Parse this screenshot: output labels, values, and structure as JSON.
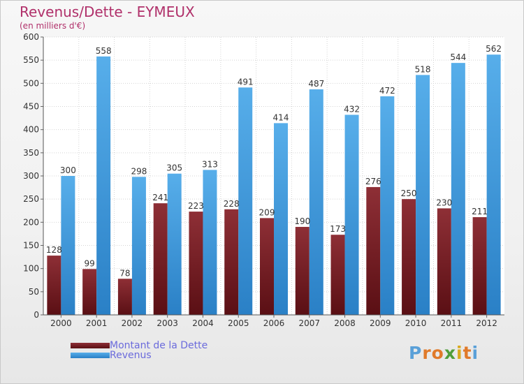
{
  "chart_data": {
    "type": "bar",
    "title": "Revenus/Dette - EYMEUX",
    "subtitle": "(en milliers d'€)",
    "categories": [
      "2000",
      "2001",
      "2002",
      "2003",
      "2004",
      "2005",
      "2006",
      "2007",
      "2008",
      "2009",
      "2010",
      "2011",
      "2012"
    ],
    "series": [
      {
        "name": "Montant de la Dette",
        "color": "#7a1f24",
        "values": [
          128,
          99,
          78,
          241,
          223,
          228,
          209,
          190,
          173,
          276,
          250,
          230,
          211
        ]
      },
      {
        "name": "Revenus",
        "color": "#3f97df",
        "values": [
          300,
          558,
          298,
          305,
          313,
          491,
          414,
          487,
          432,
          472,
          518,
          544,
          562
        ]
      }
    ],
    "ylim": [
      0,
      600
    ],
    "yticks": [
      0,
      50,
      100,
      150,
      200,
      250,
      300,
      350,
      400,
      450,
      500,
      550,
      600
    ],
    "grid": true,
    "legend_position": "bottom-left"
  },
  "logo": {
    "letters": [
      {
        "char": "P",
        "color": "#5aa0d8"
      },
      {
        "char": "r",
        "color": "#e07a2a"
      },
      {
        "char": "o",
        "color": "#e07a2a"
      },
      {
        "char": "x",
        "color": "#4f9e3a"
      },
      {
        "char": "i",
        "color": "#d9aa1e"
      },
      {
        "char": "t",
        "color": "#e07a2a"
      },
      {
        "char": "i",
        "color": "#5aa0d8"
      }
    ]
  }
}
